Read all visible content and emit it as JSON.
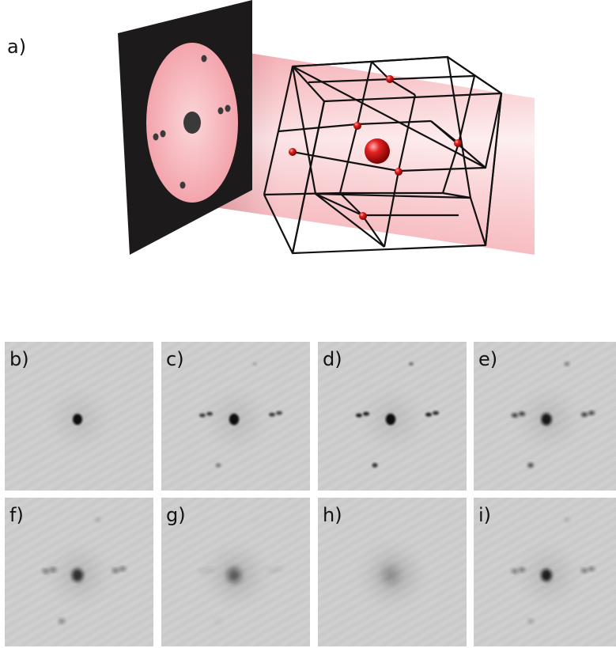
{
  "figure": {
    "main_label": "a)",
    "patterns": [
      {
        "label": "b)",
        "fade": 0.0,
        "sat_strength": 0.0,
        "top_strength": 0.0,
        "bottom_strength": 0.0,
        "center_strength": 1.0
      },
      {
        "label": "c)",
        "fade": 0.05,
        "sat_strength": 0.75,
        "top_strength": 0.15,
        "bottom_strength": 0.35,
        "center_strength": 1.0
      },
      {
        "label": "d)",
        "fade": 0.05,
        "sat_strength": 0.9,
        "top_strength": 0.4,
        "bottom_strength": 0.75,
        "center_strength": 1.0
      },
      {
        "label": "e)",
        "fade": 0.15,
        "sat_strength": 0.85,
        "top_strength": 0.45,
        "bottom_strength": 0.7,
        "center_strength": 0.95
      },
      {
        "label": "f)",
        "fade": 0.3,
        "sat_strength": 0.6,
        "top_strength": 0.25,
        "bottom_strength": 0.45,
        "center_strength": 0.8
      },
      {
        "label": "g)",
        "fade": 0.6,
        "sat_strength": 0.2,
        "top_strength": 0.05,
        "bottom_strength": 0.1,
        "center_strength": 0.55
      },
      {
        "label": "h)",
        "fade": 0.9,
        "sat_strength": 0.0,
        "top_strength": 0.0,
        "bottom_strength": 0.0,
        "center_strength": 0.2
      },
      {
        "label": "i)",
        "fade": 0.2,
        "sat_strength": 0.55,
        "top_strength": 0.2,
        "bottom_strength": 0.25,
        "center_strength": 0.9
      }
    ],
    "colors": {
      "beam": "#f08a92",
      "sphere": "#d31818",
      "detector": "#1c1a1a",
      "screen_disc": "#f2a1a8",
      "lattice_line": "#111111",
      "tile_bg": "#cfcfcf",
      "spot": "#111111"
    }
  }
}
